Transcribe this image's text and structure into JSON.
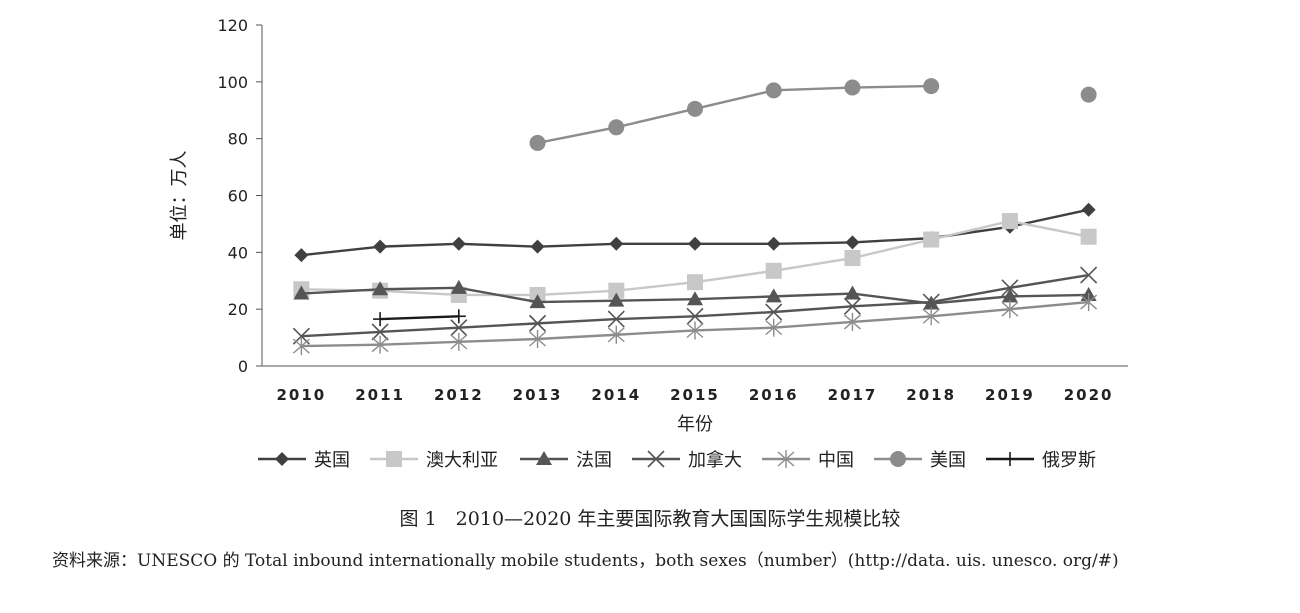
{
  "chart_data": {
    "type": "line",
    "ylabel": "单位：万人",
    "xlabel": "年份",
    "ylim": [
      0,
      120
    ],
    "yticks": [
      0,
      20,
      40,
      60,
      80,
      100,
      120
    ],
    "categories": [
      "2010",
      "2011",
      "2012",
      "2013",
      "2014",
      "2015",
      "2016",
      "2017",
      "2018",
      "2019",
      "2020"
    ],
    "legend_position": "bottom",
    "series": [
      {
        "name": "英国",
        "color": "#404040",
        "marker": "diamond",
        "values": [
          39,
          42,
          43,
          42,
          43,
          43,
          43,
          43.5,
          45,
          49,
          55
        ]
      },
      {
        "name": "澳大利亚",
        "color": "#c8c8c8",
        "marker": "square",
        "values": [
          27,
          26.5,
          25,
          25,
          26.5,
          29.5,
          33.5,
          38,
          44.5,
          51,
          45.5
        ]
      },
      {
        "name": "法国",
        "color": "#555555",
        "marker": "triangle",
        "values": [
          25.5,
          27,
          27.5,
          22.5,
          23,
          23.5,
          24.5,
          25.5,
          22,
          24.5,
          25
        ]
      },
      {
        "name": "加拿大",
        "color": "#555555",
        "marker": "x",
        "values": [
          10.5,
          12,
          13.5,
          15,
          16.5,
          17.5,
          19,
          21,
          22.5,
          27.5,
          32
        ]
      },
      {
        "name": "中国",
        "color": "#8c8c8c",
        "marker": "asterisk",
        "values": [
          7,
          7.5,
          8.5,
          9.5,
          11,
          12.5,
          13.5,
          15.5,
          17.5,
          20,
          22.5
        ]
      },
      {
        "name": "美国",
        "color": "#8c8c8c",
        "marker": "circle",
        "values": [
          null,
          null,
          null,
          78.5,
          84,
          90.5,
          97,
          98,
          98.5,
          null,
          95.5
        ]
      },
      {
        "name": "俄罗斯",
        "color": "#1a1a1a",
        "marker": "plus",
        "values": [
          null,
          16.5,
          17.5,
          null,
          null,
          null,
          null,
          null,
          null,
          null,
          null
        ]
      }
    ]
  },
  "captions": {
    "figure": "图 1　2010—2020 年主要国际教育大国国际学生规模比较",
    "source": "资料来源：UNESCO 的 Total inbound internationally mobile students，both sexes（number）(http://data. uis. unesco. org/#)"
  }
}
